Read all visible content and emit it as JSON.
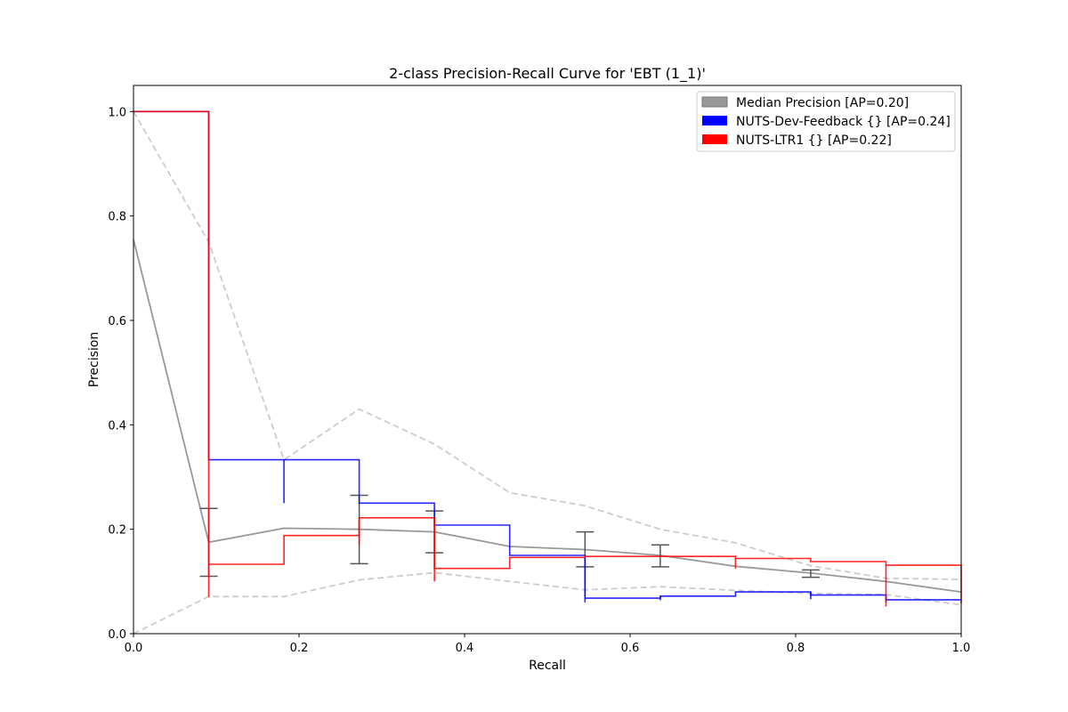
{
  "chart_data": {
    "type": "line",
    "title": "2-class Precision-Recall Curve for 'EBT (1_1)'",
    "xlabel": "Recall",
    "ylabel": "Precision",
    "xlim": [
      0,
      1
    ],
    "ylim": [
      0,
      1.05
    ],
    "xticks": [
      0.0,
      0.2,
      0.4,
      0.6,
      0.8,
      1.0
    ],
    "xtick_labels": [
      "0.0",
      "0.2",
      "0.4",
      "0.6",
      "0.8",
      "1.0"
    ],
    "yticks": [
      0.0,
      0.2,
      0.4,
      0.6,
      0.8,
      1.0
    ],
    "ytick_labels": [
      "0.0",
      "0.2",
      "0.4",
      "0.6",
      "0.8",
      "1.0"
    ],
    "grid": false,
    "legend_position": "upper right",
    "series": [
      {
        "name": "Median Precision [AP=0.20]",
        "color": "#999999",
        "style": "solid-line",
        "x": [
          0.0,
          0.0909,
          0.1818,
          0.2727,
          0.3636,
          0.4545,
          0.5455,
          0.6364,
          0.7273,
          0.8182,
          0.9091,
          1.0
        ],
        "y": [
          0.755,
          0.175,
          0.202,
          0.2,
          0.195,
          0.167,
          0.161,
          0.15,
          0.129,
          0.116,
          0.1,
          0.08
        ]
      },
      {
        "name": "NUTS-Dev-Feedback {} [AP=0.24]",
        "color": "#0000ff",
        "style": "step",
        "x": [
          0.0,
          0.0909,
          0.1818,
          0.2727,
          0.3636,
          0.4545,
          0.5455,
          0.6364,
          0.7273,
          0.8182,
          0.9091,
          1.0
        ],
        "y": [
          1.0,
          0.333,
          0.333,
          0.25,
          0.208,
          0.15,
          0.068,
          0.072,
          0.08,
          0.074,
          0.065,
          0.065
        ],
        "ticks": [
          {
            "x": 0.1818,
            "y0": 0.25,
            "y1": 0.333
          },
          {
            "x": 0.5455,
            "y0": 0.06,
            "y1": 0.15
          },
          {
            "x": 0.6364,
            "y0": 0.064,
            "y1": 0.072
          },
          {
            "x": 0.8182,
            "y0": 0.066,
            "y1": 0.08
          },
          {
            "x": 0.9091,
            "y0": 0.06,
            "y1": 0.074
          }
        ]
      },
      {
        "name": "NUTS-LTR1 {} [AP=0.22]",
        "color": "#ff0000",
        "style": "step",
        "x": [
          0.0,
          0.0909,
          0.1818,
          0.2727,
          0.3636,
          0.4545,
          0.5455,
          0.6364,
          0.7273,
          0.8182,
          0.9091,
          1.0
        ],
        "y": [
          1.0,
          0.133,
          0.188,
          0.222,
          0.125,
          0.146,
          0.148,
          0.148,
          0.144,
          0.138,
          0.131,
          0.058
        ],
        "ticks": [
          {
            "x": 0.0909,
            "y0": 0.07,
            "y1": 0.133
          },
          {
            "x": 0.2727,
            "y0": 0.17,
            "y1": 0.222
          },
          {
            "x": 0.3636,
            "y0": 0.1,
            "y1": 0.222
          },
          {
            "x": 0.7273,
            "y0": 0.125,
            "y1": 0.144
          },
          {
            "x": 0.9091,
            "y0": 0.052,
            "y1": 0.131
          }
        ]
      }
    ],
    "bounds": {
      "color": "#cccccc",
      "style": "dashed",
      "upper": {
        "x": [
          0.0,
          0.0909,
          0.1818,
          0.2727,
          0.3636,
          0.4545,
          0.5455,
          0.6364,
          0.7273,
          0.8182,
          0.9091,
          1.0
        ],
        "y": [
          1.0,
          0.75,
          0.333,
          0.43,
          0.363,
          0.27,
          0.245,
          0.2,
          0.174,
          0.13,
          0.106,
          0.104
        ]
      },
      "lower": {
        "x": [
          0.0,
          0.0909,
          0.1818,
          0.2727,
          0.3636,
          0.4545,
          0.5455,
          0.6364,
          0.7273,
          0.8182,
          0.9091,
          1.0
        ],
        "y": [
          0.0,
          0.071,
          0.071,
          0.103,
          0.117,
          0.1,
          0.084,
          0.09,
          0.083,
          0.077,
          0.075,
          0.055
        ]
      }
    },
    "error_bars": {
      "color": "#555555",
      "items": [
        {
          "x": 0.0909,
          "low": 0.11,
          "high": 0.24
        },
        {
          "x": 0.2727,
          "low": 0.134,
          "high": 0.265
        },
        {
          "x": 0.3636,
          "low": 0.155,
          "high": 0.235
        },
        {
          "x": 0.5455,
          "low": 0.128,
          "high": 0.195
        },
        {
          "x": 0.6364,
          "low": 0.128,
          "high": 0.17
        },
        {
          "x": 0.8182,
          "low": 0.108,
          "high": 0.122
        }
      ]
    }
  }
}
